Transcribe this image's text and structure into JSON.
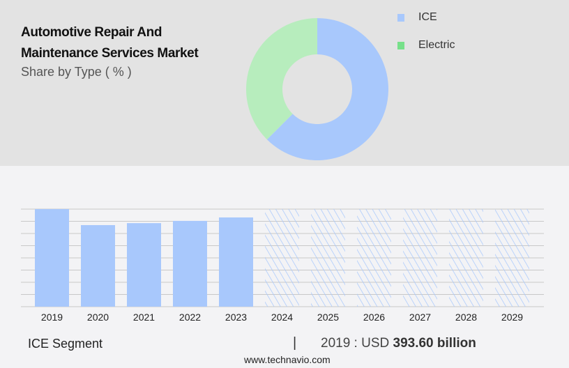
{
  "title_line1": "Automotive Repair And",
  "title_line2": "Maintenance Services Market",
  "subtitle": "Share by Type ( % )",
  "colors": {
    "ice": "#a8c8fc",
    "electric": "#b7edbd",
    "electric_legend": "#77e08a",
    "grid": "#c8c8c8"
  },
  "chart_data": [
    {
      "type": "pie",
      "variant": "donut",
      "legend_placement": "right",
      "slices": [
        {
          "name": "ICE",
          "value": 62.5
        },
        {
          "name": "Electric",
          "value": 37.5
        }
      ]
    },
    {
      "type": "bar",
      "grid": true,
      "categories": [
        "2019",
        "2020",
        "2021",
        "2022",
        "2023",
        "2024",
        "2025",
        "2026",
        "2027",
        "2028",
        "2029"
      ],
      "values": [
        393.6,
        329,
        337,
        346,
        360,
        null,
        null,
        null,
        null,
        null,
        null
      ],
      "forecast_hatched": [
        "2024",
        "2025",
        "2026",
        "2027",
        "2028",
        "2029"
      ],
      "ylim": [
        0,
        393.6
      ]
    }
  ],
  "footer": {
    "segment": "ICE Segment",
    "separator": "|",
    "value_prefix": "2019 : USD",
    "value": "393.60 billion",
    "source": "www.technavio.com"
  }
}
